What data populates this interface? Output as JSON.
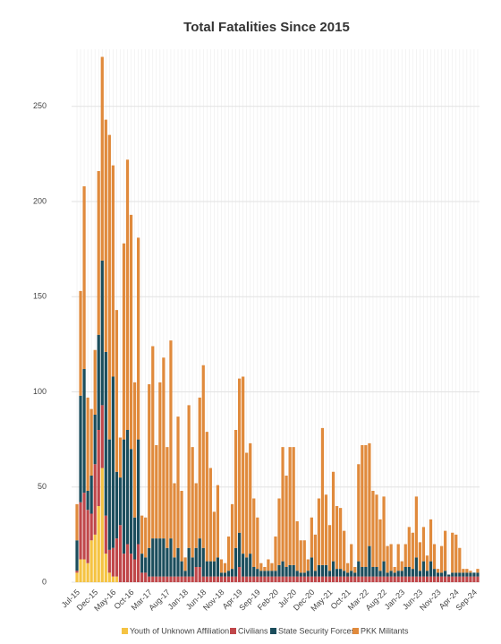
{
  "chart_data": {
    "type": "stacked_bar",
    "title": "Total Fatalities Since 2015",
    "categories": [
      "Jul-15",
      null,
      null,
      null,
      null,
      "Dec-15",
      null,
      null,
      null,
      null,
      "May-16",
      null,
      null,
      null,
      null,
      "Oct-16",
      null,
      null,
      null,
      null,
      "Mar-17",
      null,
      null,
      null,
      null,
      "Aug-17",
      null,
      null,
      null,
      null,
      "Jan-18",
      null,
      null,
      null,
      null,
      "Jun-18",
      null,
      null,
      null,
      null,
      "Nov-18",
      null,
      null,
      null,
      null,
      "Apr-19",
      null,
      null,
      null,
      null,
      "Sep-19",
      null,
      null,
      null,
      null,
      "Feb-20",
      null,
      null,
      null,
      null,
      "Jul-20",
      null,
      null,
      null,
      null,
      "Dec-20",
      null,
      null,
      null,
      null,
      "May-21",
      null,
      null,
      null,
      null,
      "Oct-21",
      null,
      null,
      null,
      null,
      "Mar-22",
      null,
      null,
      null,
      null,
      "Aug-22",
      null,
      null,
      null,
      null,
      "Jan-23",
      null,
      null,
      null,
      null,
      "Jun-23",
      null,
      null,
      null,
      null,
      "Nov-23",
      null,
      null,
      null,
      null,
      "Apr-24",
      null,
      null,
      null,
      null,
      "Sep-24",
      null
    ],
    "series": [
      {
        "name": "Youth of Unknown Affiliation",
        "color": "#f5c342",
        "values": [
          5,
          12,
          12,
          10,
          22,
          25,
          40,
          60,
          15,
          5,
          3,
          3,
          0,
          0,
          0,
          0,
          0,
          0,
          0,
          0,
          0,
          0,
          0,
          0,
          0,
          0,
          0,
          0,
          0,
          0,
          0,
          0,
          0,
          0,
          0,
          0,
          0,
          0,
          0,
          0,
          0,
          0,
          0,
          0,
          0,
          0,
          0,
          0,
          0,
          0,
          0,
          0,
          0,
          0,
          0,
          0,
          0,
          0,
          0,
          0,
          0,
          0,
          0,
          0,
          0,
          0,
          0,
          0,
          0,
          0,
          0,
          0,
          0,
          0,
          0,
          0,
          0,
          0,
          0,
          0,
          0,
          0,
          0,
          0,
          0,
          0,
          0,
          0,
          0,
          0,
          0,
          0,
          0,
          0,
          0,
          0,
          0,
          0,
          0,
          0,
          0,
          0,
          0,
          0,
          0,
          0,
          0,
          0,
          0,
          0,
          0,
          0
        ]
      },
      {
        "name": "Civilians",
        "color": "#c0474a",
        "values": [
          1,
          30,
          35,
          28,
          14,
          37,
          40,
          33,
          20,
          12,
          15,
          20,
          30,
          15,
          20,
          15,
          12,
          20,
          5,
          5,
          3,
          3,
          3,
          3,
          3,
          3,
          3,
          3,
          3,
          3,
          3,
          3,
          3,
          8,
          8,
          3,
          3,
          3,
          3,
          3,
          3,
          3,
          3,
          3,
          3,
          8,
          3,
          3,
          3,
          3,
          3,
          3,
          3,
          3,
          3,
          3,
          3,
          3,
          3,
          3,
          3,
          3,
          3,
          3,
          3,
          3,
          3,
          3,
          3,
          3,
          3,
          3,
          3,
          3,
          3,
          3,
          3,
          3,
          3,
          3,
          3,
          3,
          3,
          3,
          3,
          3,
          3,
          3,
          3,
          3,
          3,
          3,
          3,
          3,
          3,
          3,
          3,
          3,
          3,
          3,
          3,
          3,
          3,
          3,
          3,
          3,
          3,
          3,
          3,
          3,
          3,
          3
        ]
      },
      {
        "name": "State Security Forces",
        "color": "#1b4d5c",
        "values": [
          16,
          56,
          65,
          10,
          20,
          26,
          50,
          76,
          86,
          58,
          90,
          35,
          25,
          60,
          60,
          55,
          22,
          55,
          10,
          8,
          15,
          20,
          20,
          20,
          20,
          15,
          20,
          10,
          15,
          8,
          3,
          15,
          10,
          10,
          15,
          15,
          8,
          8,
          8,
          10,
          2,
          2,
          3,
          4,
          15,
          18,
          12,
          10,
          12,
          5,
          4,
          3,
          3,
          3,
          3,
          3,
          6,
          8,
          5,
          6,
          6,
          3,
          2,
          2,
          3,
          10,
          3,
          6,
          6,
          6,
          3,
          8,
          4,
          4,
          3,
          2,
          3,
          2,
          8,
          5,
          5,
          16,
          5,
          5,
          3,
          8,
          2,
          3,
          2,
          3,
          3,
          5,
          5,
          4,
          10,
          3,
          8,
          3,
          8,
          4,
          2,
          2,
          3,
          1,
          2,
          2,
          2,
          2,
          2,
          2,
          2,
          2
        ]
      },
      {
        "name": "PKK Militants",
        "color": "#e08a3c",
        "values": [
          19,
          55,
          96,
          49,
          35,
          34,
          86,
          107,
          122,
          160,
          111,
          85,
          21,
          103,
          142,
          123,
          71,
          106,
          20,
          21,
          86,
          101,
          49,
          82,
          95,
          53,
          104,
          39,
          69,
          37,
          7,
          75,
          58,
          34,
          74,
          96,
          68,
          49,
          26,
          38,
          7,
          5,
          18,
          34,
          62,
          81,
          93,
          55,
          58,
          36,
          27,
          4,
          2,
          6,
          4,
          18,
          35,
          60,
          48,
          62,
          62,
          26,
          17,
          17,
          6,
          21,
          19,
          35,
          72,
          37,
          24,
          47,
          33,
          32,
          21,
          5,
          14,
          3,
          51,
          64,
          64,
          54,
          40,
          38,
          27,
          34,
          14,
          14,
          3,
          14,
          5,
          12,
          21,
          19,
          32,
          15,
          18,
          8,
          22,
          13,
          2,
          14,
          21,
          0,
          21,
          20,
          13,
          2,
          2,
          1,
          0,
          2
        ]
      }
    ],
    "ylim": [
      0,
      280
    ],
    "yticks": [
      0,
      50,
      100,
      150,
      200,
      250
    ],
    "grid": true,
    "legend": "bottom"
  }
}
